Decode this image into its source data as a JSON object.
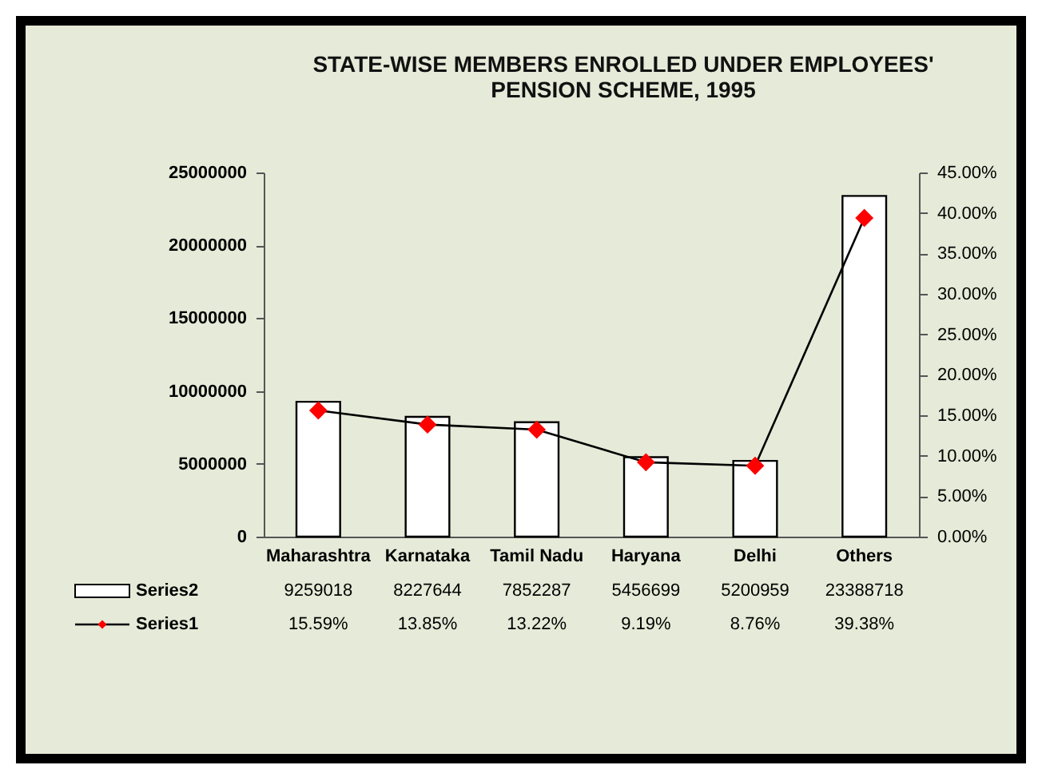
{
  "chart_data": {
    "type": "bar",
    "title": "STATE-WISE MEMBERS ENROLLED UNDER EMPLOYEES' PENSION SCHEME, 1995",
    "categories": [
      "Maharashtra",
      "Karnataka",
      "Tamil Nadu",
      "Haryana",
      "Delhi",
      "Others"
    ],
    "series": [
      {
        "name": "Series2",
        "color": "#ffffff",
        "values": [
          9259018,
          8227644,
          7852287,
          5456699,
          5200959,
          23388718
        ]
      },
      {
        "name": "Series1",
        "type": "line",
        "axis": "y2",
        "color": "#ff0000",
        "values": [
          15.59,
          13.85,
          13.22,
          9.19,
          8.76,
          39.38
        ],
        "value_labels": [
          "15.59%",
          "13.85%",
          "13.22%",
          "9.19%",
          "8.76%",
          "39.38%"
        ]
      }
    ],
    "ylim": [
      0,
      25000000
    ],
    "yticks": [
      0,
      5000000,
      10000000,
      15000000,
      20000000,
      25000000
    ],
    "y2lim": [
      0,
      45
    ],
    "y2ticks": [
      {
        "value": 0,
        "label": "0.00%"
      },
      {
        "value": 5,
        "label": "5.00%"
      },
      {
        "value": 10,
        "label": "10.00%"
      },
      {
        "value": 15,
        "label": "15.00%"
      },
      {
        "value": 20,
        "label": "20.00%"
      },
      {
        "value": 25,
        "label": "25.00%"
      },
      {
        "value": 30,
        "label": "30.00%"
      },
      {
        "value": 35,
        "label": "35.00%"
      },
      {
        "value": 40,
        "label": "40.00%"
      },
      {
        "value": 45,
        "label": "45.00%"
      }
    ],
    "data_labels": true,
    "legend": "bottom",
    "marker": "diamond",
    "line_style": "solid",
    "grid": false
  }
}
